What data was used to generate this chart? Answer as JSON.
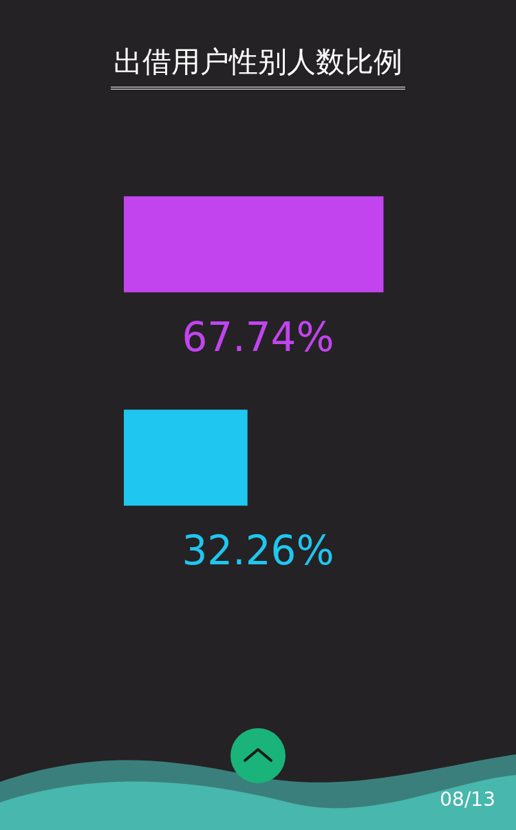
{
  "chart_data": {
    "type": "bar",
    "orientation": "horizontal",
    "title": "出借用户性别人数比例",
    "categories": [
      null,
      null
    ],
    "values": [
      67.74,
      32.26
    ],
    "colors": [
      "#c244ef",
      "#1fc6ef"
    ],
    "value_labels": [
      "67.74%",
      "32.26%"
    ],
    "annotations": [
      "08/13"
    ]
  }
}
